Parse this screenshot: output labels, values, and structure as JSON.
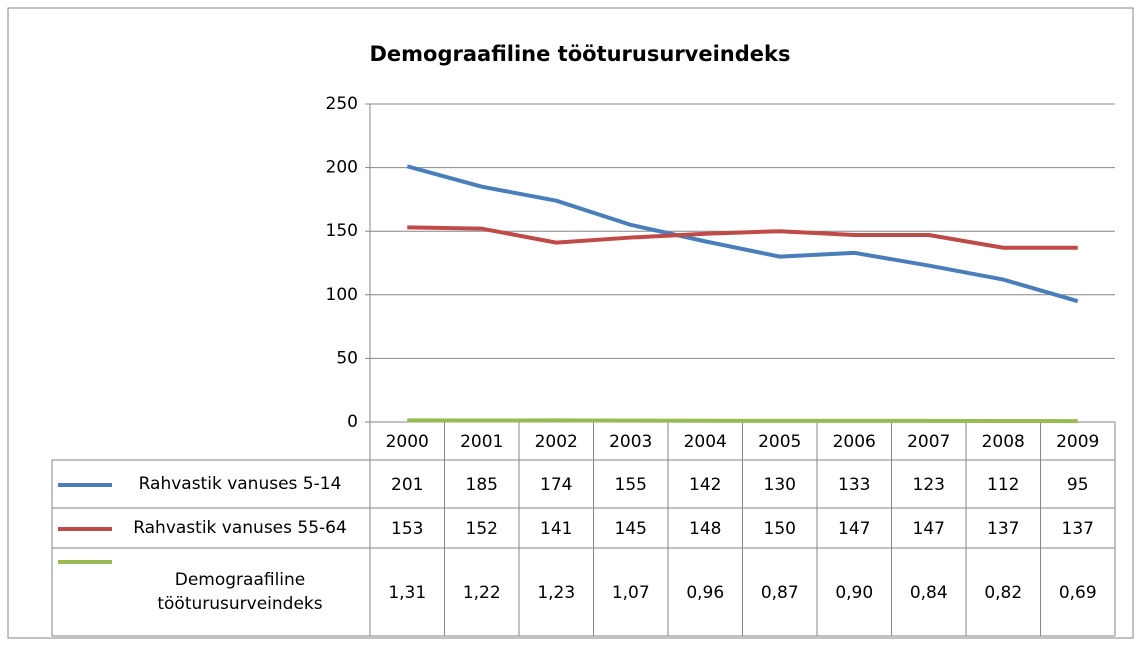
{
  "chart_data": {
    "type": "line",
    "title": "Demograafiline tööturusurveindeks",
    "categories": [
      "2000",
      "2001",
      "2002",
      "2003",
      "2004",
      "2005",
      "2006",
      "2007",
      "2008",
      "2009"
    ],
    "series": [
      {
        "name": "Rahvastik vanuses 5-14",
        "color": "#4a7ebb",
        "values": [
          201,
          185,
          174,
          155,
          142,
          130,
          133,
          123,
          112,
          95
        ]
      },
      {
        "name": "Rahvastik vanuses 55-64",
        "color": "#be4b48",
        "values": [
          153,
          152,
          141,
          145,
          148,
          150,
          147,
          147,
          137,
          137
        ]
      },
      {
        "name": "Demograafiline tööturusurveindeks",
        "color": "#98b954",
        "values": [
          1.31,
          1.22,
          1.23,
          1.07,
          0.96,
          0.87,
          0.9,
          0.84,
          0.82,
          0.69
        ],
        "value_labels": [
          "1,31",
          "1,22",
          "1,23",
          "1,07",
          "0,96",
          "0,87",
          "0,90",
          "0,84",
          "0,82",
          "0,69"
        ]
      }
    ],
    "ylim": [
      0,
      250
    ],
    "yticks": [
      0,
      50,
      100,
      150,
      200,
      250
    ],
    "grid": true
  }
}
